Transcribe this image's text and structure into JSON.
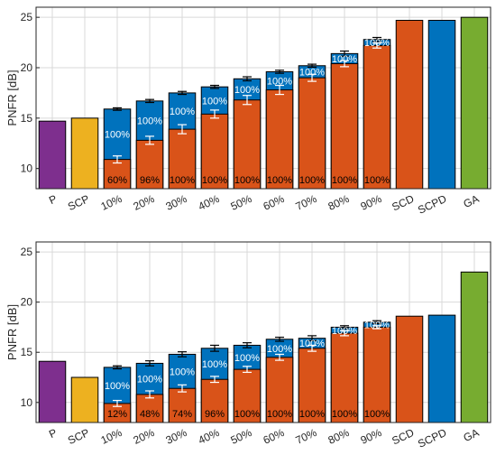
{
  "colors": {
    "P": "#7e2f8e",
    "SCP": "#edb120",
    "blue": "#0072bd",
    "orange": "#d95319",
    "GA": "#77ac30"
  },
  "chart_data": [
    {
      "type": "bar",
      "panel": "top",
      "ylabel": "PNFR [dB]",
      "ylim": [
        8,
        26
      ],
      "yticks": [
        10,
        15,
        20,
        25
      ],
      "grid": true,
      "categories": [
        "P",
        "SCP",
        "10%",
        "20%",
        "30%",
        "40%",
        "50%",
        "60%",
        "70%",
        "80%",
        "90%",
        "SCD",
        "SCPD",
        "GA"
      ],
      "single_bars": [
        {
          "category": "P",
          "value": 14.7,
          "color_key": "P"
        },
        {
          "category": "SCP",
          "value": 15.0,
          "color_key": "SCP"
        },
        {
          "category": "SCD",
          "value": 24.7,
          "color_key": "orange"
        },
        {
          "category": "SCPD",
          "value": 24.7,
          "color_key": "blue"
        },
        {
          "category": "GA",
          "value": 25.0,
          "color_key": "GA"
        }
      ],
      "stacked_bars": [
        {
          "category": "10%",
          "orange": 10.9,
          "orange_err": 0.35,
          "blue": 15.9,
          "blue_err": 0.12,
          "blue_label": "100%",
          "orange_label": "60%"
        },
        {
          "category": "20%",
          "orange": 12.8,
          "orange_err": 0.4,
          "blue": 16.7,
          "blue_err": 0.15,
          "blue_label": "100%",
          "orange_label": "96%"
        },
        {
          "category": "30%",
          "orange": 13.9,
          "orange_err": 0.45,
          "blue": 17.5,
          "blue_err": 0.15,
          "blue_label": "100%",
          "orange_label": "100%"
        },
        {
          "category": "40%",
          "orange": 15.4,
          "orange_err": 0.4,
          "blue": 18.1,
          "blue_err": 0.15,
          "blue_label": "100%",
          "orange_label": "100%"
        },
        {
          "category": "50%",
          "orange": 16.8,
          "orange_err": 0.45,
          "blue": 18.9,
          "blue_err": 0.2,
          "blue_label": "100%",
          "orange_label": "100%"
        },
        {
          "category": "60%",
          "orange": 17.8,
          "orange_err": 0.45,
          "blue": 19.6,
          "blue_err": 0.15,
          "blue_label": "100%",
          "orange_label": "100%"
        },
        {
          "category": "70%",
          "orange": 19.0,
          "orange_err": 0.35,
          "blue": 20.2,
          "blue_err": 0.15,
          "blue_label": "100%",
          "orange_label": "100%"
        },
        {
          "category": "80%",
          "orange": 20.4,
          "orange_err": 0.3,
          "blue": 21.4,
          "blue_err": 0.25,
          "blue_label": "100%",
          "orange_label": "100%"
        },
        {
          "category": "90%",
          "orange": 22.2,
          "orange_err": 0.25,
          "blue": 22.8,
          "blue_err": 0.2,
          "blue_label": "100%",
          "orange_label": "100%"
        }
      ]
    },
    {
      "type": "bar",
      "panel": "bottom",
      "ylabel": "PNFR [dB]",
      "ylim": [
        8,
        26
      ],
      "yticks": [
        10,
        15,
        20,
        25
      ],
      "grid": true,
      "categories": [
        "P",
        "SCP",
        "10%",
        "20%",
        "30%",
        "40%",
        "50%",
        "60%",
        "70%",
        "80%",
        "90%",
        "SCD",
        "SCPD",
        "GA"
      ],
      "single_bars": [
        {
          "category": "P",
          "value": 14.1,
          "color_key": "P"
        },
        {
          "category": "SCP",
          "value": 12.5,
          "color_key": "SCP"
        },
        {
          "category": "SCD",
          "value": 18.6,
          "color_key": "orange"
        },
        {
          "category": "SCPD",
          "value": 18.7,
          "color_key": "blue"
        },
        {
          "category": "GA",
          "value": 23.0,
          "color_key": "GA"
        }
      ],
      "stacked_bars": [
        {
          "category": "10%",
          "orange": 9.9,
          "orange_err": 0.3,
          "blue": 13.5,
          "blue_err": 0.15,
          "blue_label": "100%",
          "orange_label": "12%"
        },
        {
          "category": "20%",
          "orange": 10.8,
          "orange_err": 0.35,
          "blue": 13.9,
          "blue_err": 0.25,
          "blue_label": "100%",
          "orange_label": "48%"
        },
        {
          "category": "30%",
          "orange": 11.4,
          "orange_err": 0.35,
          "blue": 14.8,
          "blue_err": 0.25,
          "blue_label": "100%",
          "orange_label": "74%"
        },
        {
          "category": "40%",
          "orange": 12.3,
          "orange_err": 0.3,
          "blue": 15.4,
          "blue_err": 0.3,
          "blue_label": "100%",
          "orange_label": "96%"
        },
        {
          "category": "50%",
          "orange": 13.3,
          "orange_err": 0.3,
          "blue": 15.7,
          "blue_err": 0.25,
          "blue_label": "100%",
          "orange_label": "100%"
        },
        {
          "category": "60%",
          "orange": 14.5,
          "orange_err": 0.3,
          "blue": 16.3,
          "blue_err": 0.2,
          "blue_label": "100%",
          "orange_label": "100%"
        },
        {
          "category": "70%",
          "orange": 15.4,
          "orange_err": 0.3,
          "blue": 16.4,
          "blue_err": 0.25,
          "blue_label": "100%",
          "orange_label": "100%"
        },
        {
          "category": "80%",
          "orange": 16.9,
          "orange_err": 0.25,
          "blue": 17.5,
          "blue_err": 0.15,
          "blue_label": "100%",
          "orange_label": "100%"
        },
        {
          "category": "90%",
          "orange": 17.5,
          "orange_err": 0.15,
          "blue": 18.0,
          "blue_err": 0.15,
          "blue_label": "100%",
          "orange_label": "100%"
        }
      ]
    }
  ]
}
